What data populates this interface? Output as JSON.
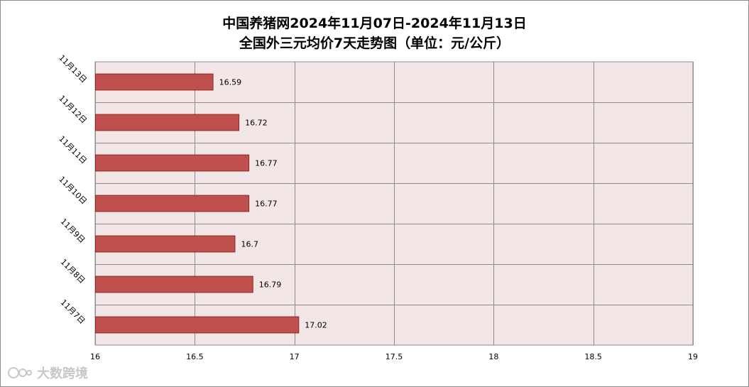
{
  "chart_data": {
    "type": "bar",
    "orientation": "horizontal",
    "title": "中国养猪网2024年11月07日-2024年11月13日",
    "subtitle": "全国外三元均价7天走势图（单位：元/公斤）",
    "categories": [
      "11月13日",
      "11月12日",
      "11月11日",
      "11月10日",
      "11月9日",
      "11月8日",
      "11月7日"
    ],
    "values": [
      16.59,
      16.72,
      16.77,
      16.77,
      16.7,
      16.79,
      17.02
    ],
    "data_labels": [
      "16.59",
      "16.72",
      "16.77",
      "16.77",
      "16.7",
      "16.79",
      "17.02"
    ],
    "x_ticks": [
      "16",
      "16.5",
      "17",
      "17.5",
      "18",
      "18.5",
      "19"
    ],
    "xlim": [
      16,
      19
    ],
    "grid": true,
    "colors": {
      "bar": "#c0504d",
      "bar_edge": "#8b2a28",
      "plot_bg": "#f2e6e6",
      "grid": "#8c8c8c"
    }
  },
  "watermark": {
    "text": "大数跨境"
  }
}
